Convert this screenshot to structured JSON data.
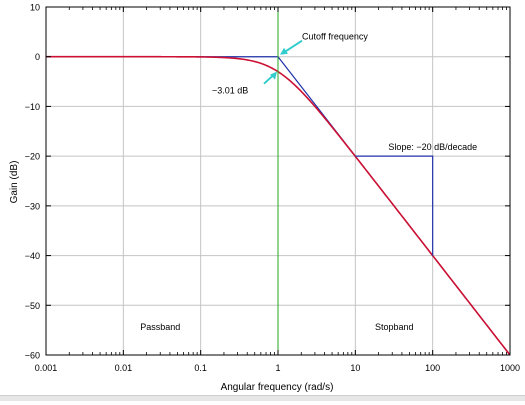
{
  "chart_data": {
    "type": "line",
    "title": "",
    "xlabel": "Angular frequency (rad/s)",
    "ylabel": "Gain (dB)",
    "x_scale": "log",
    "xlim": [
      0.001,
      1000
    ],
    "ylim": [
      -60,
      10
    ],
    "grid": true,
    "x_ticks": [
      {
        "value": 0.001,
        "label": "0.001"
      },
      {
        "value": 0.01,
        "label": "0.01"
      },
      {
        "value": 0.1,
        "label": "0.1"
      },
      {
        "value": 1,
        "label": "1"
      },
      {
        "value": 10,
        "label": "10"
      },
      {
        "value": 100,
        "label": "100"
      },
      {
        "value": 1000,
        "label": "1000"
      }
    ],
    "y_ticks": [
      {
        "value": 10,
        "label": "10"
      },
      {
        "value": 0,
        "label": "0"
      },
      {
        "value": -10,
        "label": "−10"
      },
      {
        "value": -20,
        "label": "−20"
      },
      {
        "value": -30,
        "label": "−30"
      },
      {
        "value": -40,
        "label": "−40"
      },
      {
        "value": -50,
        "label": "−50"
      },
      {
        "value": -60,
        "label": "−60"
      }
    ],
    "series": [
      {
        "role": "magnitude response",
        "color": "#cc1133",
        "x": [
          0.001,
          0.01,
          0.1,
          0.2,
          0.3,
          0.5,
          0.7,
          1,
          1.5,
          2,
          3,
          5,
          10,
          20,
          50,
          100,
          1000
        ],
        "y": [
          0,
          0,
          -0.04,
          -0.17,
          -0.37,
          -0.97,
          -1.71,
          -3.01,
          -5.12,
          -6.99,
          -10.0,
          -14.15,
          -20.04,
          -26.03,
          -33.98,
          -40.0,
          -60.0
        ]
      },
      {
        "role": "asymptote",
        "color": "#2233aa",
        "x": [
          0.001,
          1,
          1000
        ],
        "y": [
          0,
          0,
          -60
        ]
      }
    ],
    "cutoff_line": {
      "x": 1,
      "color": "#22aa22"
    },
    "slope_guide": {
      "x": [
        10,
        100,
        100
      ],
      "y": [
        -20,
        -20,
        -40
      ],
      "color": "#2233aa"
    },
    "annotations": [
      {
        "text": "Cutoff frequency",
        "at": [
          1,
          0
        ],
        "arrow_color": "#33cccc"
      },
      {
        "text": "−3.01 dB",
        "at": [
          1,
          -3.01
        ],
        "arrow_color": "#33cccc"
      },
      {
        "text": "Slope: −20 dB/decade",
        "at": [
          10,
          -20
        ]
      },
      {
        "text": "Passband",
        "at": [
          0.03,
          -53
        ]
      },
      {
        "text": "Stopband",
        "at": [
          30,
          -53
        ]
      }
    ]
  }
}
